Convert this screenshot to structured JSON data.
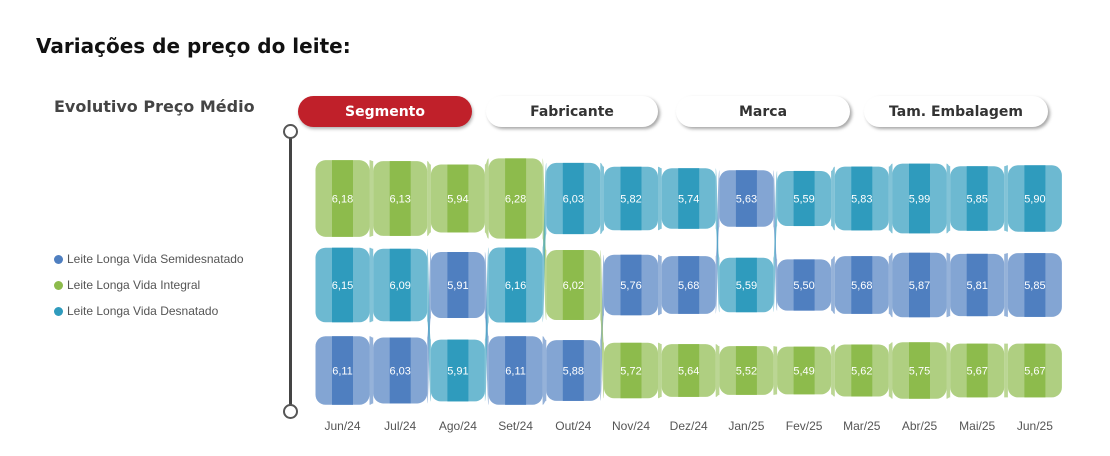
{
  "heading": "Variações de preço do leite:",
  "subtitle": "Evolutivo Preço Médio",
  "tabs": [
    {
      "label": "Segmento",
      "active": true
    },
    {
      "label": "Fabricante",
      "active": false
    },
    {
      "label": "Marca",
      "active": false
    },
    {
      "label": "Tam. Embalagem",
      "active": false
    }
  ],
  "colors": {
    "semidesnatado": "#4f7fc0",
    "integral": "#8dbb4c",
    "desnatado": "#2f9bbd",
    "tab_active": "#c0202a"
  },
  "chart_data": {
    "type": "ribbon",
    "title": "Evolutivo Preço Médio",
    "categories": [
      "Jun/24",
      "Jul/24",
      "Ago/24",
      "Set/24",
      "Out/24",
      "Nov/24",
      "Dez/24",
      "Jan/25",
      "Fev/25",
      "Mar/25",
      "Abr/25",
      "Mai/25",
      "Jun/25"
    ],
    "series": [
      {
        "name": "Leite Longa Vida Semidesnatado",
        "key": "semidesnatado",
        "values": [
          6.11,
          6.03,
          5.91,
          6.11,
          5.88,
          5.76,
          5.68,
          5.63,
          5.5,
          5.68,
          5.87,
          5.81,
          5.85
        ]
      },
      {
        "name": "Leite Longa Vida Integral",
        "key": "integral",
        "values": [
          6.18,
          6.13,
          5.94,
          6.28,
          6.02,
          5.72,
          5.64,
          5.52,
          5.49,
          5.62,
          5.75,
          5.67,
          5.67
        ]
      },
      {
        "name": "Leite Longa Vida Desnatado",
        "key": "desnatado",
        "values": [
          6.15,
          6.09,
          5.91,
          6.16,
          6.03,
          5.82,
          5.74,
          5.59,
          5.59,
          5.83,
          5.99,
          5.85,
          5.9
        ]
      }
    ],
    "labels": [
      [
        "6,18",
        "6,13",
        "5,94",
        "6,28",
        "6,03",
        "5,82",
        "5,74",
        "5,63",
        "5,59",
        "5,83",
        "5,99",
        "5,85",
        "5,90"
      ],
      [
        "6,15",
        "6,09",
        "5,91",
        "6,16",
        "6,02",
        "5,76",
        "5,68",
        "5,59",
        "5,50",
        "5,68",
        "5,87",
        "5,81",
        "5,85"
      ],
      [
        "6,11",
        "6,03",
        "5,91",
        "6,11",
        "5,88",
        "5,72",
        "5,64",
        "5,52",
        "5,49",
        "5,62",
        "5,75",
        "5,67",
        "5,67"
      ]
    ],
    "legend_position": "left"
  }
}
